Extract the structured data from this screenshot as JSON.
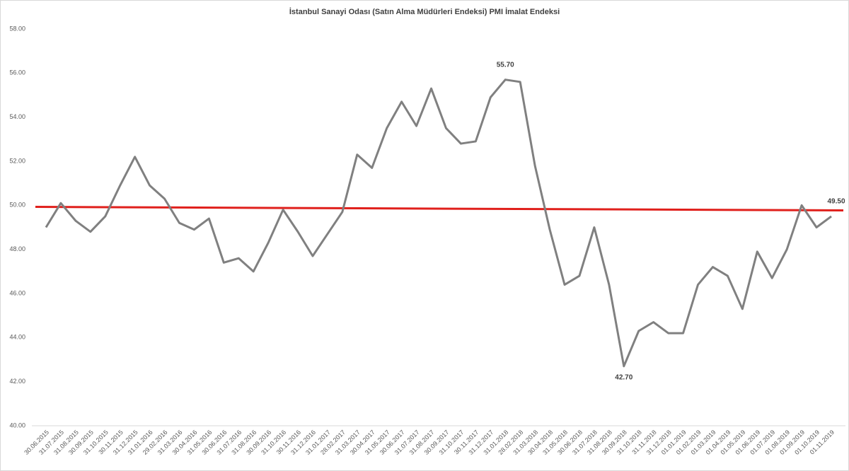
{
  "chart_data": {
    "type": "line",
    "title": "İstanbul Sanayi Odası (Satın Alma Müdürleri Endeksi) PMI İmalat Endeksi",
    "categories": [
      "30.06.2015",
      "31.07.2015",
      "31.08.2015",
      "30.09.2015",
      "31.10.2015",
      "30.11.2015",
      "31.12.2015",
      "31.01.2016",
      "29.02.2016",
      "31.03.2016",
      "30.04.2016",
      "31.05.2016",
      "30.06.2016",
      "31.07.2016",
      "31.08.2016",
      "30.09.2016",
      "31.10.2016",
      "30.11.2016",
      "31.12.2016",
      "31.01.2017",
      "28.02.2017",
      "31.03.2017",
      "30.04.2017",
      "31.05.2017",
      "30.06.2017",
      "31.07.2017",
      "31.08.2017",
      "30.09.2017",
      "31.10.2017",
      "30.11.2017",
      "31.12.2017",
      "31.01.2018",
      "28.02.2018",
      "31.03.2018",
      "30.04.2018",
      "31.05.2018",
      "30.06.2018",
      "31.07.2018",
      "31.08.2018",
      "30.09.2018",
      "31.10.2018",
      "31.11.2018",
      "31.12.2018",
      "01.01.2019",
      "01.02.2019",
      "01.03.2019",
      "01.04.2019",
      "01.05.2019",
      "01.06.2019",
      "01.07.2019",
      "01.08.2019",
      "01.09.2019",
      "01.10.2019",
      "01.11.2019"
    ],
    "values": [
      49.0,
      50.1,
      49.3,
      48.8,
      49.5,
      50.9,
      52.2,
      50.9,
      50.3,
      49.2,
      48.9,
      49.4,
      47.4,
      47.6,
      47.0,
      48.3,
      49.8,
      48.8,
      47.7,
      48.7,
      49.7,
      52.3,
      51.7,
      53.5,
      54.7,
      53.6,
      55.3,
      53.5,
      52.8,
      52.9,
      54.9,
      55.7,
      55.6,
      51.8,
      48.9,
      46.4,
      46.8,
      49.0,
      46.4,
      42.7,
      44.3,
      44.7,
      44.2,
      44.2,
      46.4,
      47.2,
      46.8,
      45.3,
      47.9,
      46.7,
      48.0,
      50.0,
      49.0,
      49.5
    ],
    "value_labels": [
      null,
      null,
      null,
      null,
      null,
      null,
      null,
      null,
      null,
      null,
      null,
      null,
      null,
      null,
      null,
      null,
      null,
      null,
      null,
      null,
      null,
      null,
      null,
      null,
      null,
      null,
      null,
      null,
      null,
      null,
      null,
      "55.70",
      null,
      null,
      null,
      null,
      null,
      null,
      null,
      "42.70",
      null,
      null,
      null,
      null,
      null,
      null,
      null,
      null,
      null,
      null,
      null,
      null,
      null,
      "49.50"
    ],
    "color": "#808080",
    "trendline": {
      "color": "#e0201c",
      "start": 49.93,
      "end": 49.77
    },
    "ylim": [
      40,
      58
    ],
    "yticks": [
      {
        "value": 40,
        "label": "40.00"
      },
      {
        "value": 42,
        "label": "42.00"
      },
      {
        "value": 44,
        "label": "44.00"
      },
      {
        "value": 46,
        "label": "46.00"
      },
      {
        "value": 48,
        "label": "48.00"
      },
      {
        "value": 50,
        "label": "50.00"
      },
      {
        "value": 52,
        "label": "52.00"
      },
      {
        "value": 54,
        "label": "54.00"
      },
      {
        "value": 56,
        "label": "56.00"
      },
      {
        "value": 58,
        "label": "58.00"
      }
    ],
    "grid": false
  }
}
